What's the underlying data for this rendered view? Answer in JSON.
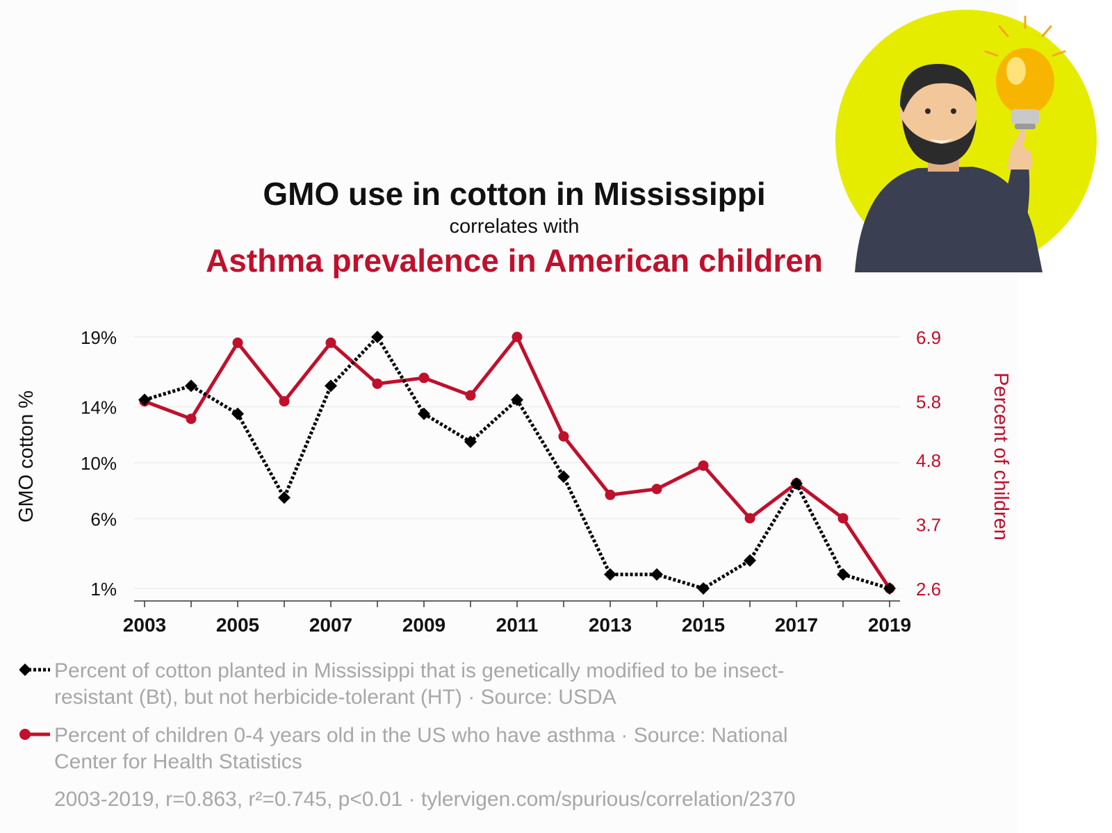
{
  "header": {
    "title": "GMO use in cotton in Mississippi",
    "connector": "correlates with",
    "subtitle": "Asthma prevalence in American children"
  },
  "colors": {
    "series_a": "#000000",
    "series_b": "#c0102c",
    "legend_text": "#a7a7a7",
    "badge_bg": "#e6ec00"
  },
  "badge": {
    "icon": "idea-person-lightbulb-icon"
  },
  "chart_data": {
    "type": "line",
    "x": [
      2003,
      2004,
      2005,
      2006,
      2007,
      2008,
      2009,
      2010,
      2011,
      2012,
      2013,
      2014,
      2015,
      2016,
      2017,
      2018,
      2019
    ],
    "x_tick_labels": [
      "2003",
      "2005",
      "2007",
      "2009",
      "2011",
      "2013",
      "2015",
      "2017",
      "2019"
    ],
    "series": [
      {
        "axis": "left",
        "style": "dotted",
        "marker": "diamond",
        "values": [
          14.5,
          15.5,
          13.5,
          7.5,
          15.5,
          19,
          13.5,
          11.5,
          14.5,
          9,
          2,
          2,
          1,
          3,
          8.5,
          2,
          1
        ]
      },
      {
        "axis": "right",
        "style": "solid",
        "marker": "circle",
        "values": [
          5.8,
          5.5,
          6.8,
          5.8,
          6.8,
          6.1,
          6.2,
          5.9,
          6.9,
          5.2,
          4.2,
          4.3,
          4.7,
          3.8,
          4.4,
          3.8,
          2.6
        ]
      }
    ],
    "y_left": {
      "label": "GMO cotton %",
      "ylim": [
        1,
        19
      ],
      "ticks": [
        1,
        6,
        10,
        14,
        19
      ],
      "tick_labels": [
        "1%",
        "6%",
        "10%",
        "14%",
        "19%"
      ]
    },
    "y_right": {
      "label": "Percent of children",
      "ylim": [
        2.6,
        6.9
      ],
      "ticks": [
        2.6,
        3.7,
        4.8,
        5.8,
        6.9
      ],
      "tick_labels": [
        "2.6",
        "3.7",
        "4.8",
        "5.8",
        "6.9"
      ]
    },
    "grid": true
  },
  "legend": {
    "series_a": "Percent of cotton planted in Mississippi that is genetically modified to be insect-resistant (Bt), but not herbicide-tolerant (HT) · Source: USDA",
    "series_b": "Percent of children 0-4 years old in the US who have asthma · Source: National Center for Health Statistics"
  },
  "stats": "2003-2019, r=0.863, r²=0.745, p<0.01 · tylervigen.com/spurious/correlation/2370"
}
